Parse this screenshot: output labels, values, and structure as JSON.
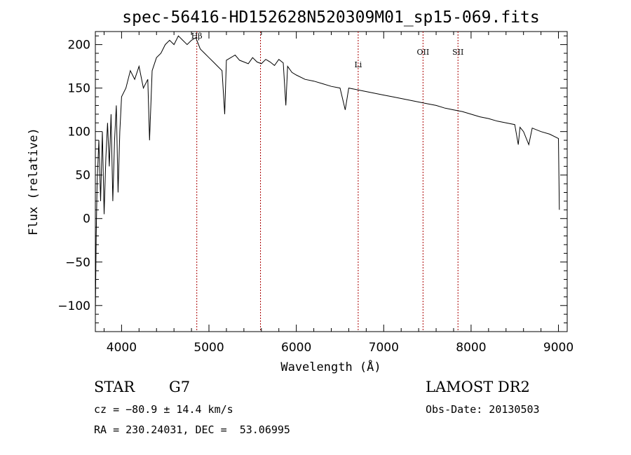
{
  "chart_data": {
    "type": "line",
    "title": "spec-56416-HD152628N520309M01_sp15-069.fits",
    "xlabel": "Wavelength (Å)",
    "ylabel": "Flux (relative)",
    "xlim": [
      3700,
      9100
    ],
    "ylim": [
      -130,
      215
    ],
    "x_ticks": [
      4000,
      5000,
      6000,
      7000,
      8000,
      9000
    ],
    "y_ticks": [
      -100,
      -50,
      0,
      50,
      100,
      150,
      200
    ],
    "grid": false,
    "line_color": "#000000",
    "marker_color": "#aa0000",
    "lines": [
      {
        "label": "Hβ",
        "x": 4861
      },
      {
        "label": "",
        "x": 5590
      },
      {
        "label": "Li",
        "x": 6708
      },
      {
        "label": "OII",
        "x": 7450
      },
      {
        "label": "SII",
        "x": 7850
      }
    ],
    "series": [
      {
        "x": [
          3700,
          3710,
          3720,
          3740,
          3760,
          3780,
          3800,
          3820,
          3840,
          3860,
          3880,
          3900,
          3920,
          3940,
          3960,
          3980,
          4000,
          4050,
          4100,
          4150,
          4200,
          4250,
          4300,
          4320,
          4350,
          4400,
          4450,
          4500,
          4550,
          4600,
          4650,
          4700,
          4750,
          4800,
          4850,
          4900,
          4950,
          5000,
          5050,
          5100,
          5150,
          5180,
          5200,
          5250,
          5300,
          5350,
          5400,
          5450,
          5500,
          5550,
          5600,
          5650,
          5700,
          5750,
          5800,
          5850,
          5880,
          5900,
          5950,
          6000,
          6100,
          6200,
          6300,
          6400,
          6500,
          6560,
          6600,
          6700,
          6800,
          6900,
          7000,
          7100,
          7200,
          7300,
          7400,
          7500,
          7600,
          7700,
          7800,
          7900,
          8000,
          8100,
          8200,
          8300,
          8400,
          8500,
          8540,
          8560,
          8600,
          8660,
          8700,
          8800,
          8900,
          9000,
          9010
        ],
        "values": [
          -110,
          -20,
          40,
          90,
          20,
          100,
          5,
          70,
          110,
          60,
          120,
          20,
          90,
          130,
          30,
          100,
          140,
          150,
          170,
          160,
          175,
          150,
          160,
          90,
          170,
          185,
          190,
          200,
          205,
          200,
          210,
          205,
          200,
          205,
          208,
          195,
          190,
          185,
          180,
          175,
          170,
          120,
          182,
          185,
          188,
          182,
          180,
          178,
          185,
          180,
          178,
          183,
          180,
          176,
          183,
          179,
          130,
          175,
          168,
          165,
          160,
          158,
          155,
          152,
          150,
          125,
          150,
          148,
          146,
          144,
          142,
          140,
          138,
          136,
          134,
          132,
          130,
          127,
          125,
          123,
          120,
          117,
          115,
          112,
          110,
          108,
          85,
          105,
          100,
          85,
          104,
          100,
          97,
          92,
          10
        ]
      }
    ]
  },
  "info": {
    "object_class": "STAR",
    "subclass": "G7",
    "survey": "LAMOST DR2",
    "cz": "cz = −80.9 ± 14.4 km/s",
    "obs_date": "Obs-Date: 20130503",
    "coords": "RA = 230.24031, DEC =  53.06995"
  }
}
